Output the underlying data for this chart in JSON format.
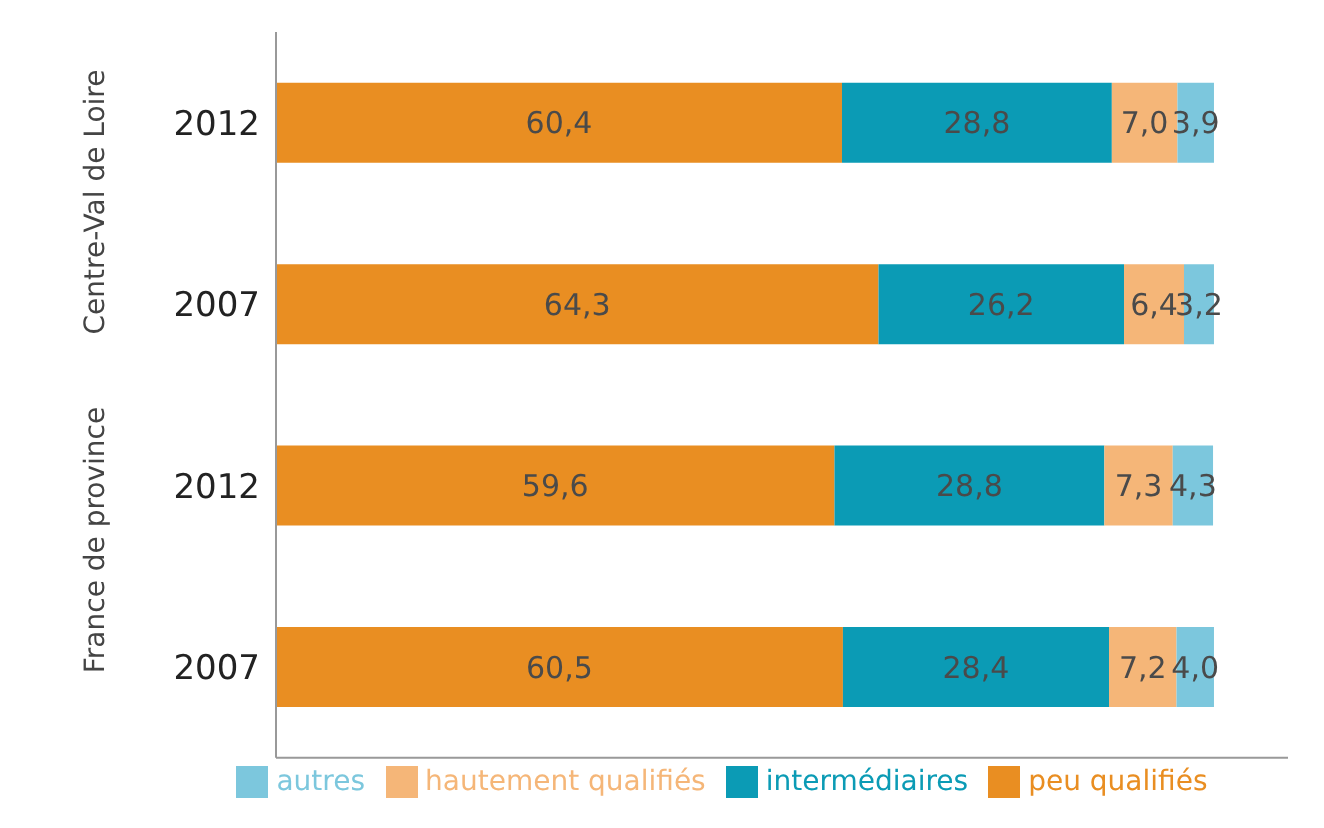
{
  "chart_data": {
    "type": "bar",
    "orientation": "horizontal",
    "stacked": true,
    "categories": [
      "2012",
      "2007",
      "2012",
      "2007"
    ],
    "series": [
      {
        "name": "peu qualifiés",
        "color": "#e98e22",
        "values": [
          60.4,
          64.3,
          59.6,
          60.5
        ],
        "value_labels": [
          "60,4",
          "64,3",
          "59,6",
          "60,5"
        ]
      },
      {
        "name": "intermédiaires",
        "color": "#0b9bb5",
        "values": [
          28.8,
          26.2,
          28.8,
          28.4
        ],
        "value_labels": [
          "28,8",
          "26,2",
          "28,8",
          "28,4"
        ]
      },
      {
        "name": "hautement qualifiés",
        "color": "#f5b678",
        "values": [
          7.0,
          6.4,
          7.3,
          7.2
        ],
        "value_labels": [
          "7,0",
          "6,4",
          "7,3",
          "7,2"
        ]
      },
      {
        "name": "autres",
        "color": "#7cc7dd",
        "values": [
          3.9,
          3.2,
          4.3,
          4.0
        ],
        "value_labels": [
          "3,9",
          "3,2",
          "4,3",
          "4,0"
        ]
      }
    ],
    "annotations": [
      "Centre-Val de Loire",
      "France de province"
    ],
    "xlim": [
      0,
      108
    ],
    "tick_labels": "y",
    "legend": "bottom",
    "grid": false
  }
}
